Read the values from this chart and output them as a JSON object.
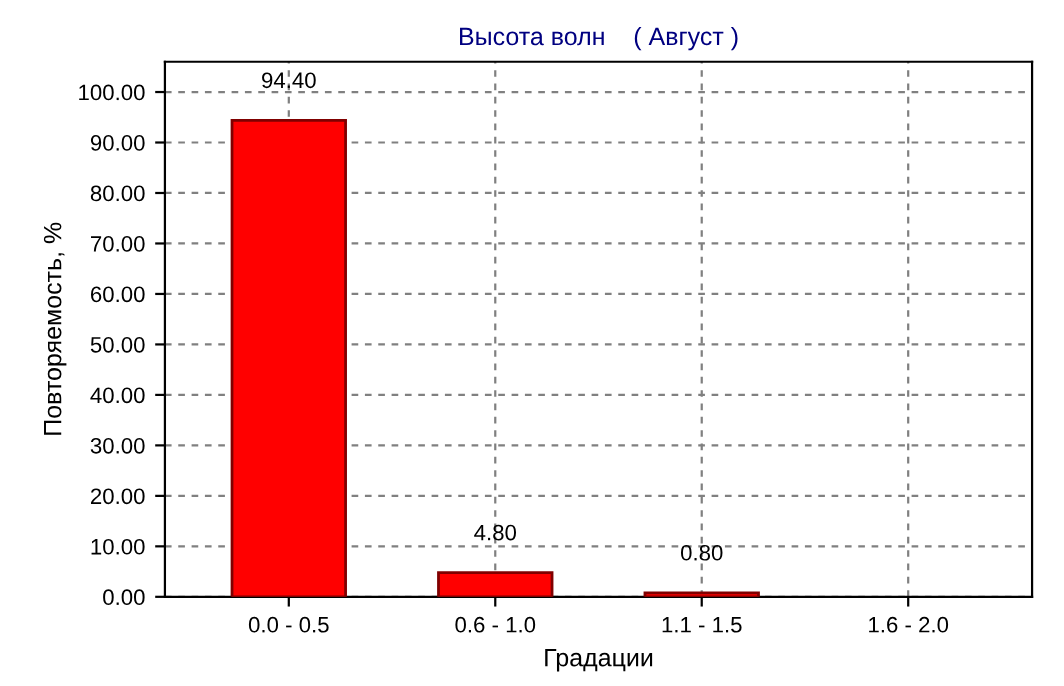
{
  "chart_data": {
    "type": "bar",
    "title": "Высота волн    ( Август )",
    "xlabel": "Градации",
    "ylabel": "Повторяемость, %",
    "categories": [
      "0.0 - 0.5",
      "0.6 - 1.0",
      "1.1 - 1.5",
      "1.6 - 2.0"
    ],
    "values": [
      94.4,
      4.8,
      0.8,
      null
    ],
    "value_labels": [
      "94.40",
      "4.80",
      "0.80",
      null
    ],
    "color": "#ff0000",
    "ylim": [
      0,
      106
    ],
    "yticks": [
      {
        "value": 0,
        "label": "0.00"
      },
      {
        "value": 10,
        "label": "10.00"
      },
      {
        "value": 20,
        "label": "20.00"
      },
      {
        "value": 30,
        "label": "30.00"
      },
      {
        "value": 40,
        "label": "40.00"
      },
      {
        "value": 50,
        "label": "50.00"
      },
      {
        "value": 60,
        "label": "60.00"
      },
      {
        "value": 70,
        "label": "70.00"
      },
      {
        "value": 80,
        "label": "80.00"
      },
      {
        "value": 90,
        "label": "90.00"
      },
      {
        "value": 100,
        "label": "100.00"
      }
    ],
    "grid": true
  }
}
